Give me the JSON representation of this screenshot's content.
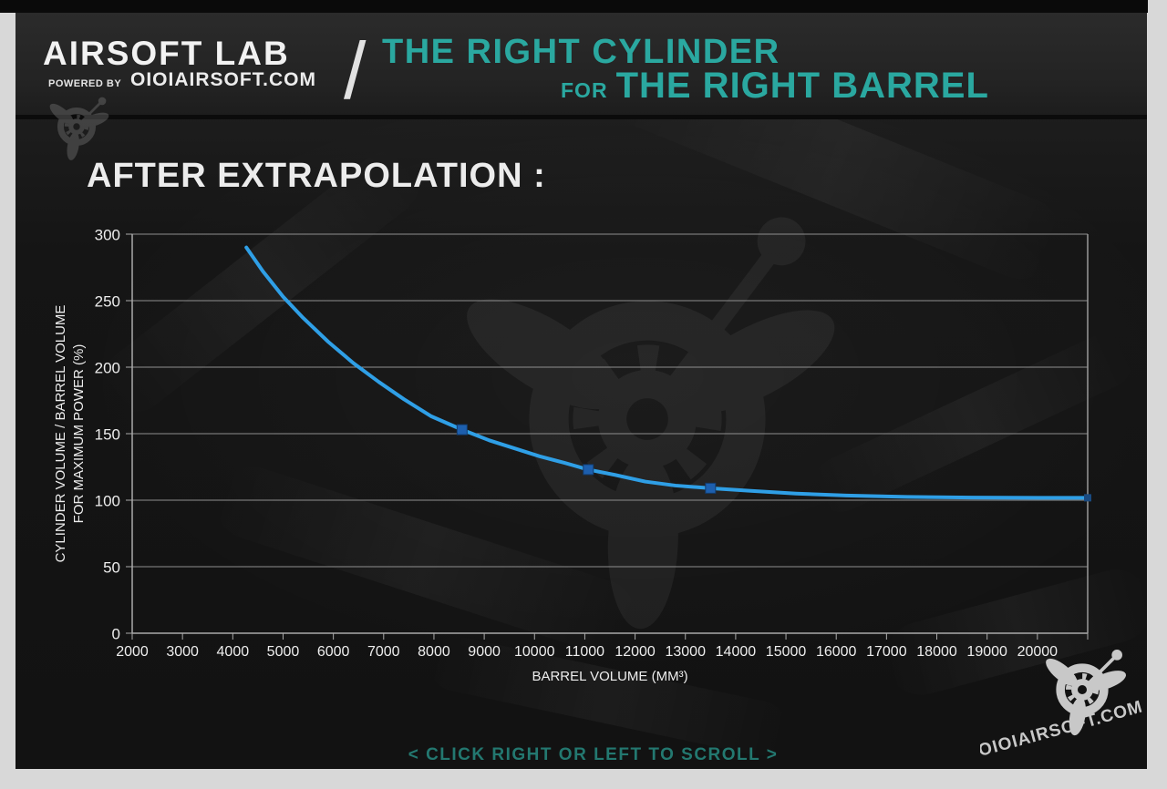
{
  "frame": {
    "matte_color": "#d8d8d8",
    "top_bar_color": "#0a0a0a",
    "content_bg": "#161616",
    "header_bg": "#242424"
  },
  "header": {
    "brand": "AIRSOFT LAB",
    "powered_by": "POWERED BY",
    "site": "OIOIAIRSOFT.COM",
    "separator": "/",
    "title_line1": "THE RIGHT CYLINDER",
    "title_line2_small": "FOR",
    "title_line2": "THE RIGHT BARREL",
    "accent_color": "#2aa8a0"
  },
  "section": {
    "heading": "AFTER EXTRAPOLATION :"
  },
  "chart_data": {
    "type": "line",
    "title": "AFTER EXTRAPOLATION :",
    "xlabel": "BARREL VOLUME (MM³)",
    "ylabel_line1": "CYLINDER VOLUME / BARREL VOLUME",
    "ylabel_line2": "FOR MAXIMUM POWER (%)",
    "xlim": [
      2000,
      21000
    ],
    "ylim": [
      0,
      300
    ],
    "x_tick_step": 1000,
    "x_tick_labels": [
      2000,
      3000,
      4000,
      5000,
      6000,
      7000,
      8000,
      9000,
      10000,
      11000,
      12000,
      13000,
      14000,
      15000,
      16000,
      17000,
      18000,
      19000,
      20000
    ],
    "y_ticks": [
      0,
      50,
      100,
      150,
      200,
      250,
      300
    ],
    "grid": true,
    "legend": "none",
    "line_color": "#2f9fe6",
    "marker_color": "#1d5fae",
    "grid_color": "#8f8f8f",
    "series": [
      {
        "name": "CYLINDER VOLUME / BARREL VOLUME FOR MAXIMUM POWER (%) — EXTRAPOLATED",
        "points": [
          [
            4270,
            290
          ],
          [
            4600,
            272
          ],
          [
            5000,
            253
          ],
          [
            5400,
            237
          ],
          [
            5900,
            219
          ],
          [
            6400,
            203
          ],
          [
            6900,
            189
          ],
          [
            7400,
            176
          ],
          [
            7950,
            163
          ],
          [
            8560,
            153
          ],
          [
            9100,
            145
          ],
          [
            9600,
            139
          ],
          [
            10100,
            133
          ],
          [
            10600,
            128
          ],
          [
            11070,
            123
          ],
          [
            11600,
            119
          ],
          [
            12200,
            114
          ],
          [
            12800,
            111
          ],
          [
            13500,
            109
          ],
          [
            14300,
            107
          ],
          [
            15200,
            105
          ],
          [
            16200,
            103.5
          ],
          [
            17400,
            102.5
          ],
          [
            18700,
            102
          ],
          [
            20000,
            101.8
          ],
          [
            21000,
            101.8
          ]
        ]
      }
    ],
    "marker_points": [
      [
        8560,
        153
      ],
      [
        11070,
        123
      ],
      [
        13500,
        109
      ]
    ],
    "end_point": [
      21000,
      101.8
    ]
  },
  "footer": {
    "scroll_hint": "< CLICK RIGHT OR LEFT TO SCROLL >",
    "hint_color": "#237870",
    "logo_text": "OIOIAIRSOFT.COM"
  }
}
